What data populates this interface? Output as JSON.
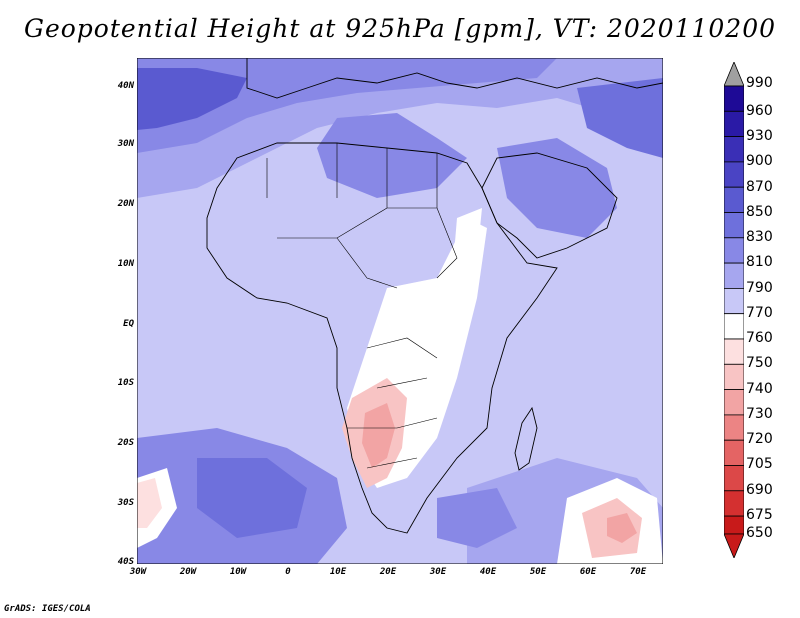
{
  "title": "Geopotential Height at 925hPa [gpm], VT: 2020110200",
  "credit": "GrADS: IGES/COLA",
  "map": {
    "region": "Africa",
    "lat_labels": [
      "40N",
      "30N",
      "20N",
      "10N",
      "EQ",
      "10S",
      "20S",
      "30S",
      "40S"
    ],
    "lon_labels": [
      "30W",
      "20W",
      "10W",
      "0",
      "10E",
      "20E",
      "30E",
      "40E",
      "50E",
      "60E",
      "70E"
    ]
  },
  "colorbar": {
    "levels": [
      "990",
      "960",
      "930",
      "900",
      "870",
      "850",
      "830",
      "810",
      "790",
      "770",
      "760",
      "750",
      "740",
      "730",
      "720",
      "705",
      "690",
      "675",
      "650"
    ],
    "colors": [
      "#a0a0a0",
      "#1e0a96",
      "#2a1aa6",
      "#3a2fb6",
      "#4a44c4",
      "#5a5ad0",
      "#6e70dc",
      "#8888e6",
      "#a6a6ef",
      "#c8c8f7",
      "#ffffff",
      "#fde0e0",
      "#f8c4c4",
      "#f2a4a4",
      "#ec8484",
      "#e46464",
      "#dc4848",
      "#d43030",
      "#c81a1a"
    ]
  }
}
